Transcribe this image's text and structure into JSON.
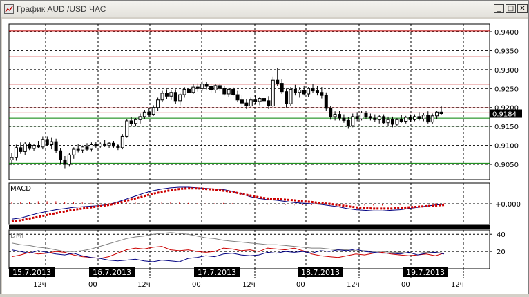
{
  "window": {
    "title": "График AUD /USD  ЧАС",
    "buttons": [
      {
        "name": "minimize-button",
        "glyph": "_"
      },
      {
        "name": "maximize-button",
        "glyph": "□"
      },
      {
        "name": "close-button",
        "glyph": "✕"
      }
    ]
  },
  "colors": {
    "candle_up": "#ffffff",
    "candle_down": "#000000",
    "resistance": "#c00000",
    "support": "#008000",
    "macd_line": "#000080",
    "signal_line": "#cc0000",
    "dmi_plus": "#000080",
    "dmi_minus": "#cc0000",
    "adx": "#808080"
  },
  "chart_data": [
    {
      "type": "candlestick",
      "title": "AUD/USD",
      "ylim": [
        0.901,
        0.942
      ],
      "yticks": [
        "0.9400",
        "0.9350",
        "0.9300",
        "0.9250",
        "0.9200",
        "0.9150",
        "0.9100",
        "0.9050"
      ],
      "last_price": "0.9184",
      "resistance_levels": [
        0.9402,
        0.9334,
        0.9262,
        0.9199,
        0.9186
      ],
      "support_levels": [
        0.9172,
        0.9151,
        0.9053
      ],
      "candles": [
        [
          0.9062,
          0.908,
          0.9048,
          0.9068
        ],
        [
          0.9068,
          0.9102,
          0.906,
          0.9094
        ],
        [
          0.9094,
          0.9108,
          0.9078,
          0.9084
        ],
        [
          0.9084,
          0.911,
          0.9075,
          0.9104
        ],
        [
          0.9104,
          0.9108,
          0.9088,
          0.9092
        ],
        [
          0.9092,
          0.9104,
          0.9086,
          0.91
        ],
        [
          0.91,
          0.9112,
          0.9092,
          0.9096
        ],
        [
          0.9096,
          0.9124,
          0.909,
          0.9116
        ],
        [
          0.9116,
          0.9124,
          0.9098,
          0.9102
        ],
        [
          0.9102,
          0.912,
          0.909,
          0.911
        ],
        [
          0.911,
          0.9118,
          0.908,
          0.9086
        ],
        [
          0.9086,
          0.9092,
          0.905,
          0.9062
        ],
        [
          0.9062,
          0.9072,
          0.904,
          0.905
        ],
        [
          0.905,
          0.908,
          0.9044,
          0.9075
        ],
        [
          0.9075,
          0.9095,
          0.9065,
          0.909
        ],
        [
          0.909,
          0.9104,
          0.9082,
          0.9088
        ],
        [
          0.9088,
          0.91,
          0.908,
          0.9096
        ],
        [
          0.9096,
          0.9106,
          0.9086,
          0.909
        ],
        [
          0.909,
          0.9108,
          0.9084,
          0.9102
        ],
        [
          0.9102,
          0.911,
          0.9092,
          0.9098
        ],
        [
          0.9098,
          0.9108,
          0.9094,
          0.9104
        ],
        [
          0.9104,
          0.9114,
          0.9096,
          0.91
        ],
        [
          0.91,
          0.911,
          0.9092,
          0.9106
        ],
        [
          0.9106,
          0.9112,
          0.9094,
          0.9098
        ],
        [
          0.9098,
          0.9104,
          0.9088,
          0.9094
        ],
        [
          0.9094,
          0.913,
          0.909,
          0.9124
        ],
        [
          0.9124,
          0.917,
          0.912,
          0.9165
        ],
        [
          0.9165,
          0.9175,
          0.915,
          0.9158
        ],
        [
          0.9158,
          0.9172,
          0.915,
          0.9168
        ],
        [
          0.9168,
          0.9184,
          0.9158,
          0.9176
        ],
        [
          0.9176,
          0.9194,
          0.917,
          0.9188
        ],
        [
          0.9188,
          0.9198,
          0.9176,
          0.9182
        ],
        [
          0.9182,
          0.9206,
          0.9178,
          0.92
        ],
        [
          0.92,
          0.9226,
          0.9192,
          0.922
        ],
        [
          0.922,
          0.9244,
          0.9214,
          0.9238
        ],
        [
          0.9238,
          0.9248,
          0.9222,
          0.923
        ],
        [
          0.923,
          0.9246,
          0.922,
          0.924
        ],
        [
          0.924,
          0.9248,
          0.921,
          0.9218
        ],
        [
          0.9218,
          0.924,
          0.9206,
          0.9234
        ],
        [
          0.9234,
          0.9254,
          0.9226,
          0.9248
        ],
        [
          0.9248,
          0.9256,
          0.9232,
          0.924
        ],
        [
          0.924,
          0.9262,
          0.9236,
          0.9254
        ],
        [
          0.9254,
          0.9264,
          0.9242,
          0.925
        ],
        [
          0.925,
          0.927,
          0.9244,
          0.9262
        ],
        [
          0.9262,
          0.9268,
          0.9248,
          0.9256
        ],
        [
          0.9256,
          0.9264,
          0.924,
          0.9246
        ],
        [
          0.9246,
          0.9262,
          0.9238,
          0.9258
        ],
        [
          0.9258,
          0.9264,
          0.9244,
          0.925
        ],
        [
          0.925,
          0.9258,
          0.9232,
          0.9236
        ],
        [
          0.9236,
          0.9252,
          0.9228,
          0.9248
        ],
        [
          0.9248,
          0.9254,
          0.923,
          0.9234
        ],
        [
          0.9234,
          0.9244,
          0.9214,
          0.922
        ],
        [
          0.922,
          0.9232,
          0.9204,
          0.9212
        ],
        [
          0.9212,
          0.9222,
          0.9196,
          0.9204
        ],
        [
          0.9204,
          0.9226,
          0.92,
          0.922
        ],
        [
          0.922,
          0.9232,
          0.921,
          0.9216
        ],
        [
          0.9216,
          0.9228,
          0.9206,
          0.9224
        ],
        [
          0.9224,
          0.9232,
          0.9212,
          0.9218
        ],
        [
          0.9218,
          0.923,
          0.9196,
          0.9204
        ],
        [
          0.9204,
          0.9282,
          0.92,
          0.9272
        ],
        [
          0.9272,
          0.9304,
          0.9256,
          0.9264
        ],
        [
          0.9264,
          0.9276,
          0.9236,
          0.9242
        ],
        [
          0.9242,
          0.925,
          0.92,
          0.921
        ],
        [
          0.921,
          0.9254,
          0.9204,
          0.9248
        ],
        [
          0.9248,
          0.926,
          0.9232,
          0.924
        ],
        [
          0.924,
          0.9254,
          0.9226,
          0.9246
        ],
        [
          0.9246,
          0.9258,
          0.9232,
          0.9236
        ],
        [
          0.9236,
          0.9254,
          0.9228,
          0.925
        ],
        [
          0.925,
          0.9262,
          0.9238,
          0.9244
        ],
        [
          0.9244,
          0.9256,
          0.9232,
          0.924
        ],
        [
          0.924,
          0.9254,
          0.9224,
          0.9232
        ],
        [
          0.9232,
          0.924,
          0.9192,
          0.9198
        ],
        [
          0.9198,
          0.9204,
          0.9168,
          0.9176
        ],
        [
          0.9176,
          0.919,
          0.9166,
          0.9182
        ],
        [
          0.9182,
          0.9192,
          0.9166,
          0.9172
        ],
        [
          0.9172,
          0.9182,
          0.916,
          0.9166
        ],
        [
          0.9166,
          0.9174,
          0.9144,
          0.9152
        ],
        [
          0.9152,
          0.9184,
          0.9148,
          0.9176
        ],
        [
          0.9176,
          0.9188,
          0.9164,
          0.917
        ],
        [
          0.917,
          0.9192,
          0.9166,
          0.9186
        ],
        [
          0.9186,
          0.9192,
          0.917,
          0.9176
        ],
        [
          0.9176,
          0.9184,
          0.9166,
          0.9172
        ],
        [
          0.9172,
          0.9182,
          0.9162,
          0.9168
        ],
        [
          0.9168,
          0.918,
          0.9158,
          0.9176
        ],
        [
          0.9176,
          0.9182,
          0.9156,
          0.916
        ],
        [
          0.916,
          0.9176,
          0.915,
          0.9168
        ],
        [
          0.9168,
          0.9176,
          0.9148,
          0.9156
        ],
        [
          0.9156,
          0.9172,
          0.915,
          0.9168
        ],
        [
          0.9168,
          0.918,
          0.916,
          0.9164
        ],
        [
          0.9164,
          0.9178,
          0.9158,
          0.9174
        ],
        [
          0.9174,
          0.9182,
          0.9162,
          0.9168
        ],
        [
          0.9168,
          0.9182,
          0.9164,
          0.9176
        ],
        [
          0.9176,
          0.9188,
          0.9166,
          0.917
        ],
        [
          0.917,
          0.9186,
          0.9164,
          0.918
        ],
        [
          0.918,
          0.919,
          0.9158,
          0.9162
        ],
        [
          0.9162,
          0.9184,
          0.9156,
          0.9178
        ],
        [
          0.9178,
          0.9192,
          0.917,
          0.9188
        ],
        [
          0.9188,
          0.9204,
          0.918,
          0.9184
        ]
      ]
    },
    {
      "type": "line",
      "label": "MACD",
      "ytick": "+0.000",
      "macd": [
        -0.0026,
        -0.0024,
        -0.002,
        -0.0016,
        -0.0013,
        -0.001,
        -0.0008,
        -0.0006,
        -0.0005,
        -0.0004,
        -0.0003,
        -0.0001,
        0.0003,
        0.0008,
        0.0013,
        0.0018,
        0.0022,
        0.0025,
        0.0027,
        0.0028,
        0.0028,
        0.0027,
        0.0026,
        0.0025,
        0.0024,
        0.0021,
        0.0017,
        0.0012,
        0.0009,
        0.0007,
        0.0006,
        0.0004,
        0.0002,
        0.0001,
        0.0,
        -0.0001,
        -0.0003,
        -0.0005,
        -0.0008,
        -0.001,
        -0.0011,
        -0.0012,
        -0.0012,
        -0.0011,
        -0.001,
        -0.0008,
        -0.0006,
        -0.0004,
        -0.0002,
        -0.0001
      ],
      "signal": [
        -0.003,
        -0.0028,
        -0.0025,
        -0.0022,
        -0.0019,
        -0.0016,
        -0.0013,
        -0.001,
        -0.0008,
        -0.0006,
        -0.0004,
        -0.0002,
        0.0001,
        0.0005,
        0.0009,
        0.0013,
        0.0017,
        0.002,
        0.0023,
        0.0025,
        0.0026,
        0.0026,
        0.0025,
        0.0024,
        0.0022,
        0.002,
        0.0017,
        0.0014,
        0.0011,
        0.0009,
        0.0008,
        0.0007,
        0.0006,
        0.0004,
        0.0003,
        0.0001,
        0.0,
        -0.0002,
        -0.0004,
        -0.0006,
        -0.0007,
        -0.0008,
        -0.0008,
        -0.0008,
        -0.0007,
        -0.0006,
        -0.0005,
        -0.0004,
        -0.0003,
        -0.0002
      ]
    },
    {
      "type": "line",
      "label": "DMI",
      "yticks": [
        "40",
        "20"
      ],
      "ylim": [
        0,
        45
      ],
      "plus_di": [
        22,
        20,
        18,
        21,
        19,
        17,
        16,
        18,
        15,
        13,
        12,
        10,
        9,
        10,
        11,
        9,
        8,
        10,
        9,
        8,
        12,
        13,
        15,
        14,
        17,
        18,
        16,
        15,
        16,
        19,
        18,
        20,
        19,
        20,
        18,
        21,
        20,
        22,
        21,
        23,
        20,
        19,
        18,
        18,
        17,
        19,
        16,
        18,
        19,
        17
      ],
      "minus_di": [
        14,
        16,
        19,
        17,
        18,
        20,
        19,
        16,
        14,
        13,
        12,
        14,
        18,
        22,
        24,
        23,
        25,
        26,
        22,
        21,
        22,
        20,
        19,
        20,
        24,
        23,
        21,
        22,
        20,
        24,
        23,
        22,
        24,
        21,
        17,
        15,
        14,
        13,
        15,
        17,
        16,
        18,
        19,
        17,
        16,
        15,
        16,
        17,
        15,
        18
      ],
      "adx": [
        30,
        28,
        27,
        25,
        24,
        22,
        20,
        20,
        21,
        23,
        26,
        29,
        32,
        35,
        37,
        38,
        40,
        41,
        42,
        41,
        40,
        38,
        36,
        35,
        33,
        32,
        31,
        30,
        29,
        28,
        28,
        27,
        26,
        25,
        24,
        24,
        23,
        22,
        22,
        21,
        21,
        20,
        20,
        19,
        19,
        18,
        18,
        19,
        19,
        18
      ]
    }
  ],
  "time_axis": {
    "date_badges": [
      "15.7.2013",
      "16.7.2013",
      "17.7.2013",
      "18.7.2013",
      "19.7.2013"
    ],
    "hour_labels": [
      "12ч",
      "00",
      "12ч",
      "00",
      "12ч",
      "00",
      "12ч",
      "00",
      "12ч"
    ]
  }
}
